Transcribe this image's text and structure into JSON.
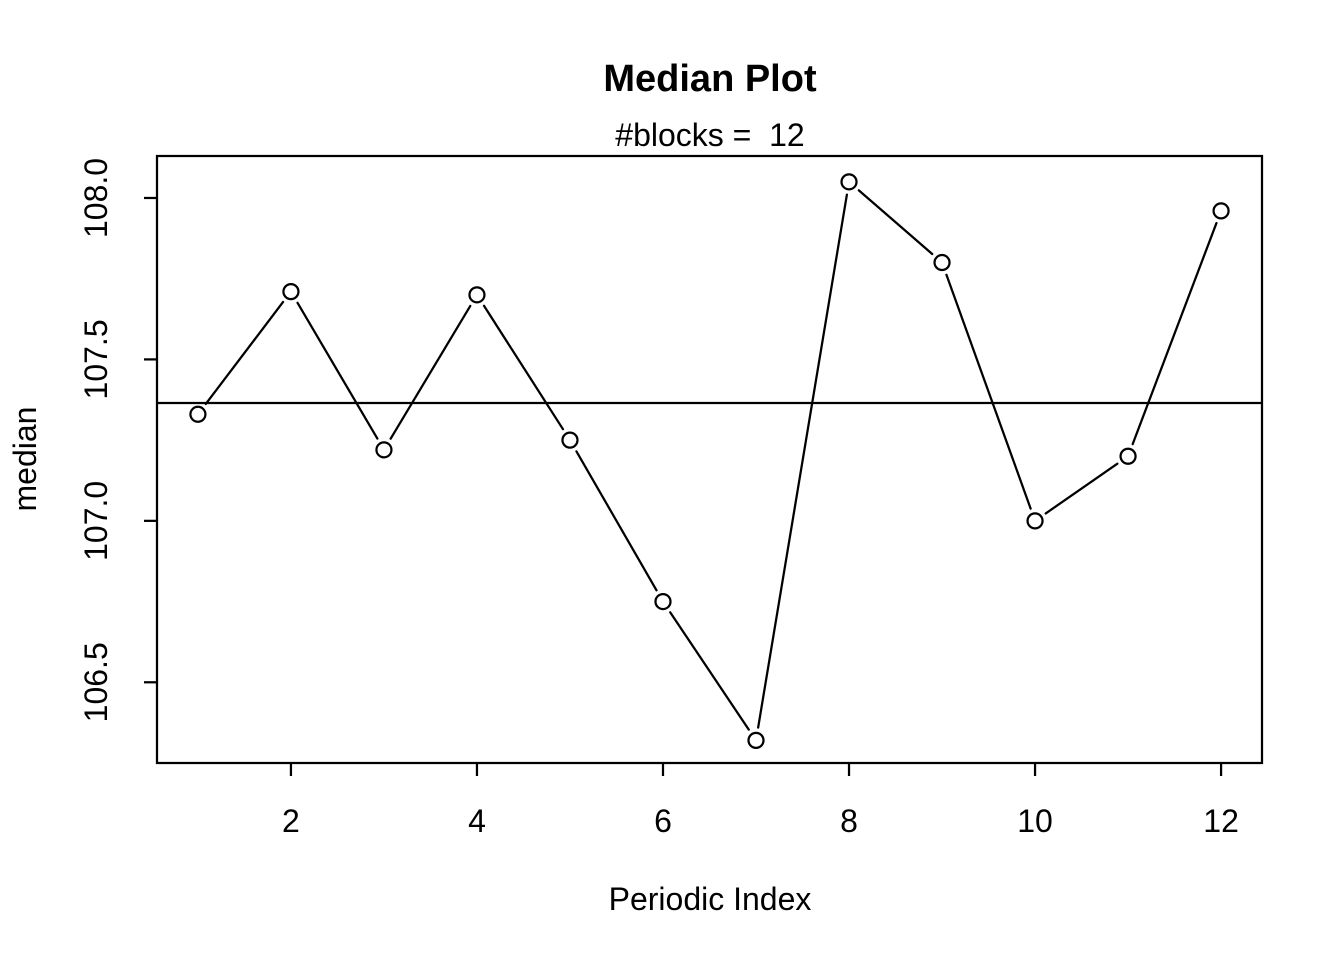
{
  "figure": {
    "background_color": "#ffffff",
    "foreground_color": "#000000"
  },
  "chart_data": {
    "type": "line",
    "title": "Median Plot",
    "subtitle": "#blocks =  12",
    "xlabel": "Periodic Index",
    "ylabel": "median",
    "marker": "open-circle",
    "line_style": "solid-segments-with-gaps-at-markers",
    "grid": false,
    "legend": null,
    "x": [
      1,
      2,
      3,
      4,
      5,
      6,
      7,
      8,
      9,
      10,
      11,
      12
    ],
    "y": [
      107.33,
      107.71,
      107.22,
      107.7,
      107.25,
      106.75,
      106.32,
      108.05,
      107.8,
      107.0,
      107.2,
      107.96
    ],
    "reference_line_y": 107.365,
    "xticks": [
      2,
      4,
      6,
      8,
      10,
      12
    ],
    "xtick_labels": [
      "2",
      "4",
      "6",
      "8",
      "10",
      "12"
    ],
    "yticks": [
      106.5,
      107.0,
      107.5,
      108.0
    ],
    "ytick_labels": [
      "106.5",
      "107.0",
      "107.5",
      "108.0"
    ],
    "xlim": [
      0.56,
      12.44
    ],
    "ylim": [
      106.25,
      108.13
    ],
    "stroke_color": "#000000"
  }
}
